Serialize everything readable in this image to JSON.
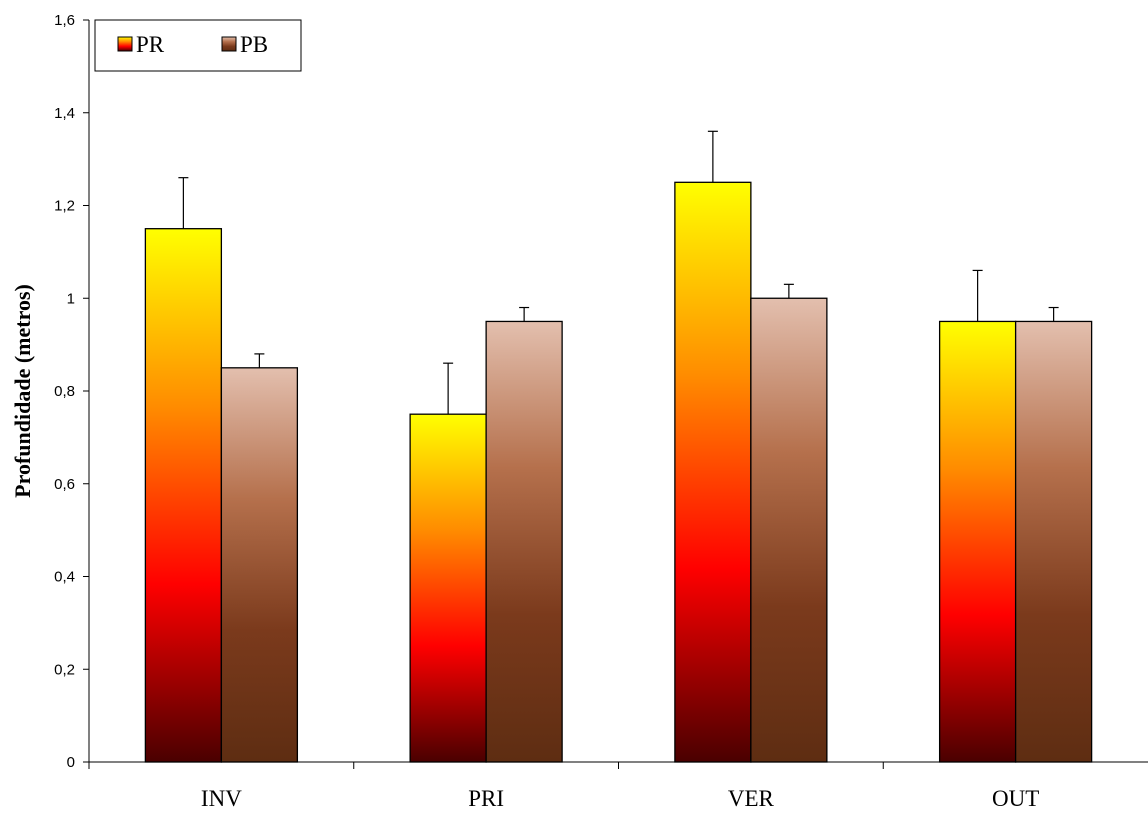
{
  "chart_data": {
    "type": "bar",
    "title": "",
    "xlabel": "",
    "ylabel": "Profundidade (metros)",
    "ylim": [
      0,
      1.6
    ],
    "y_ticks": [
      "0",
      "0,2",
      "0,4",
      "0,6",
      "0,8",
      "1",
      "1,2",
      "1,4",
      "1,6"
    ],
    "categories": [
      "INV",
      "PRI",
      "VER",
      "OUT"
    ],
    "series": [
      {
        "name": "PR",
        "values": [
          1.15,
          0.75,
          1.25,
          0.95
        ],
        "error_upper": [
          0.11,
          0.11,
          0.11,
          0.11
        ],
        "gradient": [
          "#ffff00",
          "#ff8c00",
          "#ff0000",
          "#4a0000"
        ]
      },
      {
        "name": "PB",
        "values": [
          0.85,
          0.95,
          1.0,
          0.95
        ],
        "error_upper": [
          0.03,
          0.03,
          0.03,
          0.03
        ],
        "gradient": [
          "#e3bfae",
          "#b5704c",
          "#7b3a1c",
          "#5e2d12"
        ]
      }
    ],
    "legend_position": "top-left",
    "grid": false
  }
}
